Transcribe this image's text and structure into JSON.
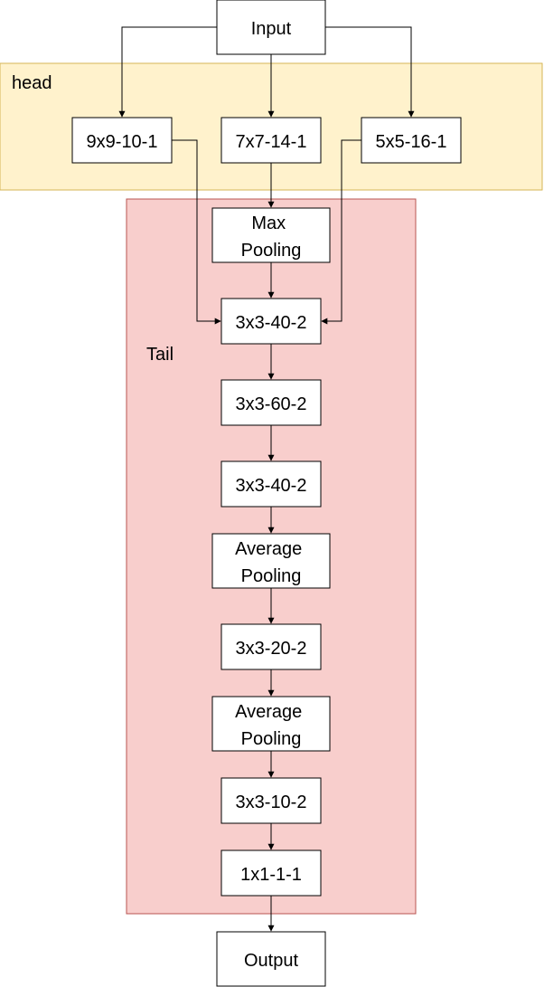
{
  "colors": {
    "head_fill": "#fff2cc",
    "head_stroke": "#d6b656",
    "tail_fill": "#f8cecc",
    "tail_stroke": "#b85450",
    "node_fill": "#ffffff",
    "line": "#000000"
  },
  "groups": {
    "head": {
      "label": "head"
    },
    "tail": {
      "label": "Tail"
    }
  },
  "nodes": {
    "input": {
      "lines": [
        "Input"
      ]
    },
    "b9": {
      "lines": [
        "9x9-10-1"
      ]
    },
    "b7": {
      "lines": [
        "7x7-14-1"
      ]
    },
    "b5": {
      "lines": [
        "5x5-16-1"
      ]
    },
    "maxpool": {
      "lines": [
        "Max",
        "Pooling"
      ]
    },
    "c1": {
      "lines": [
        "3x3-40-2"
      ]
    },
    "c2": {
      "lines": [
        "3x3-60-2"
      ]
    },
    "c3": {
      "lines": [
        "3x3-40-2"
      ]
    },
    "avgpool1": {
      "lines": [
        "Average",
        "Pooling"
      ]
    },
    "c4": {
      "lines": [
        "3x3-20-2"
      ]
    },
    "avgpool2": {
      "lines": [
        "Average",
        "Pooling"
      ]
    },
    "c5": {
      "lines": [
        "3x3-10-2"
      ]
    },
    "c6": {
      "lines": [
        "1x1-1-1"
      ]
    },
    "output": {
      "lines": [
        "Output"
      ]
    }
  },
  "edges": [
    {
      "from": "input",
      "to": "b9"
    },
    {
      "from": "input",
      "to": "b7"
    },
    {
      "from": "input",
      "to": "b5"
    },
    {
      "from": "b7",
      "to": "maxpool"
    },
    {
      "from": "maxpool",
      "to": "c1"
    },
    {
      "from": "b9",
      "to": "c1"
    },
    {
      "from": "b5",
      "to": "c1"
    },
    {
      "from": "c1",
      "to": "c2"
    },
    {
      "from": "c2",
      "to": "c3"
    },
    {
      "from": "c3",
      "to": "avgpool1"
    },
    {
      "from": "avgpool1",
      "to": "c4"
    },
    {
      "from": "c4",
      "to": "avgpool2"
    },
    {
      "from": "avgpool2",
      "to": "c5"
    },
    {
      "from": "c5",
      "to": "c6"
    },
    {
      "from": "c6",
      "to": "output"
    }
  ]
}
